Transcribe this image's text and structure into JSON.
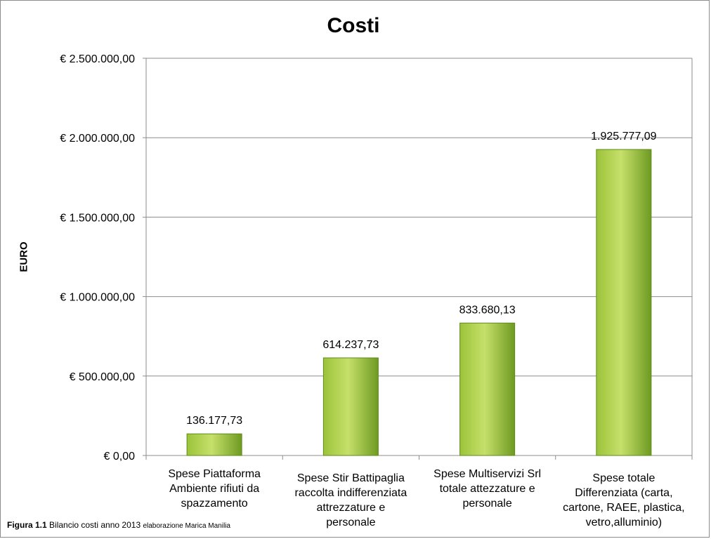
{
  "chart_data": {
    "type": "bar",
    "title": "Costi",
    "xlabel": "",
    "ylabel": "EURO",
    "ylim": [
      0,
      2500000
    ],
    "yticks": [
      {
        "value": 0,
        "label": "€ 0,00"
      },
      {
        "value": 500000,
        "label": "€ 500.000,00"
      },
      {
        "value": 1000000,
        "label": "€ 1.000.000,00"
      },
      {
        "value": 1500000,
        "label": "€ 1.500.000,00"
      },
      {
        "value": 2000000,
        "label": "€ 2.000.000,00"
      },
      {
        "value": 2500000,
        "label": "€ 2.500.000,00"
      }
    ],
    "categories": [
      [
        "Spese Piattaforma",
        "Ambiente rifiuti da",
        "spazzamento"
      ],
      [
        "Spese Stir Battipaglia",
        "raccolta indifferenziata",
        "attrezzature e",
        "personale"
      ],
      [
        "Spese Multiservizi Srl",
        "totale attezzature e",
        "personale"
      ],
      [
        "Spese totale",
        "Differenziata (carta,",
        "cartone, RAEE, plastica,",
        "vetro,alluminio)"
      ]
    ],
    "values": [
      136177.73,
      614237.73,
      833680.13,
      1925777.09
    ],
    "data_labels": [
      "136.177,73",
      "614.237,73",
      "833.680,13",
      "1.925.777,09"
    ],
    "grid": true,
    "legend": "none",
    "colors": {
      "bar_light": "#c6e06a",
      "bar_mid": "#9bc33a",
      "bar_dark": "#6e9a22",
      "bar_stroke": "#5e8a1a",
      "gridline": "#8c8c8c",
      "axis": "#8c8c8c"
    }
  },
  "caption": {
    "figure_number": "Figura 1.1",
    "text": " Bilancio costi anno 2013 ",
    "author": "elaborazione Marica Manilia"
  }
}
